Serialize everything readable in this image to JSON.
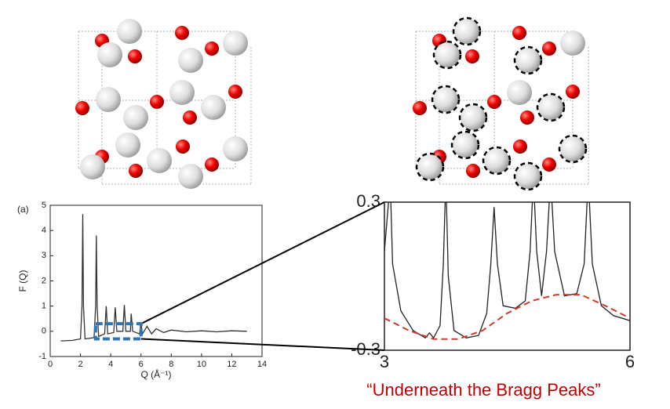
{
  "chart_data": [
    {
      "type": "line",
      "label": "(a)",
      "x_label": "Q (Å⁻¹)",
      "y_label": "F (Q)",
      "xlim": [
        0,
        14
      ],
      "ylim": [
        -1,
        5
      ],
      "xticks": [
        0,
        2,
        4,
        6,
        8,
        10,
        12,
        14
      ],
      "yticks": [
        -1,
        0,
        1,
        2,
        3,
        4,
        5
      ],
      "zoom_color": "#2e75b6",
      "series": [
        {
          "color": "#333333",
          "x": [
            0.7,
            1.5,
            2.0,
            2.1,
            2.15,
            2.2,
            2.3,
            2.9,
            3.0,
            3.05,
            3.1,
            3.2,
            3.6,
            3.7,
            3.8,
            4.2,
            4.3,
            4.4,
            4.8,
            4.9,
            5.0,
            5.3,
            5.35,
            5.45,
            5.9,
            6.0,
            6.1,
            6.4,
            6.7,
            7.0,
            7.5,
            8,
            9,
            10,
            11,
            12,
            13
          ],
          "values": [
            -0.38,
            -0.36,
            -0.3,
            1.0,
            4.65,
            1.0,
            -0.3,
            -0.25,
            1.0,
            3.8,
            1.0,
            -0.2,
            -0.1,
            1.0,
            -0.1,
            -0.05,
            0.95,
            0,
            0,
            1.05,
            0,
            0,
            0.7,
            0,
            -0.1,
            0.3,
            -0.1,
            0.2,
            -0.1,
            0.1,
            -0.05,
            0.05,
            -0.02,
            0.02,
            -0.02,
            0.02,
            0
          ]
        }
      ]
    },
    {
      "type": "line",
      "xlim": [
        3,
        6
      ],
      "ylim": [
        -0.3,
        0.3
      ],
      "xticks": [
        3,
        6
      ],
      "yticks": [
        0.3,
        -0.3
      ],
      "caption": "“Underneath the Bragg Peaks”",
      "caption_color": "#c00000",
      "series": [
        {
          "color": "#222222",
          "x": [
            3.0,
            3.05,
            3.07,
            3.1,
            3.2,
            3.35,
            3.5,
            3.55,
            3.6,
            3.68,
            3.72,
            3.75,
            3.78,
            3.85,
            4.0,
            4.15,
            4.25,
            4.3,
            4.34,
            4.38,
            4.45,
            4.6,
            4.72,
            4.78,
            4.82,
            4.86,
            4.92,
            4.98,
            5.03,
            5.08,
            5.2,
            5.35,
            5.44,
            5.49,
            5.54,
            5.65,
            5.8,
            6.0
          ],
          "values": [
            0.1,
            0.3,
            0.4,
            0.05,
            -0.14,
            -0.22,
            -0.25,
            -0.23,
            -0.25,
            -0.2,
            0.05,
            0.4,
            0.0,
            -0.22,
            -0.25,
            -0.24,
            -0.15,
            0.05,
            0.28,
            0.05,
            -0.12,
            -0.13,
            -0.1,
            0.1,
            0.4,
            0.1,
            -0.08,
            0.1,
            0.4,
            0.1,
            -0.08,
            -0.07,
            0.05,
            0.4,
            0.05,
            -0.12,
            -0.16,
            -0.18
          ]
        },
        {
          "color": "#d43a2a",
          "dashed": true,
          "x": [
            3.0,
            3.3,
            3.6,
            3.9,
            4.2,
            4.5,
            4.8,
            5.1,
            5.4,
            5.7,
            6.0
          ],
          "values": [
            -0.17,
            -0.22,
            -0.255,
            -0.255,
            -0.22,
            -0.15,
            -0.1,
            -0.075,
            -0.075,
            -0.12,
            -0.17
          ]
        }
      ]
    }
  ]
}
